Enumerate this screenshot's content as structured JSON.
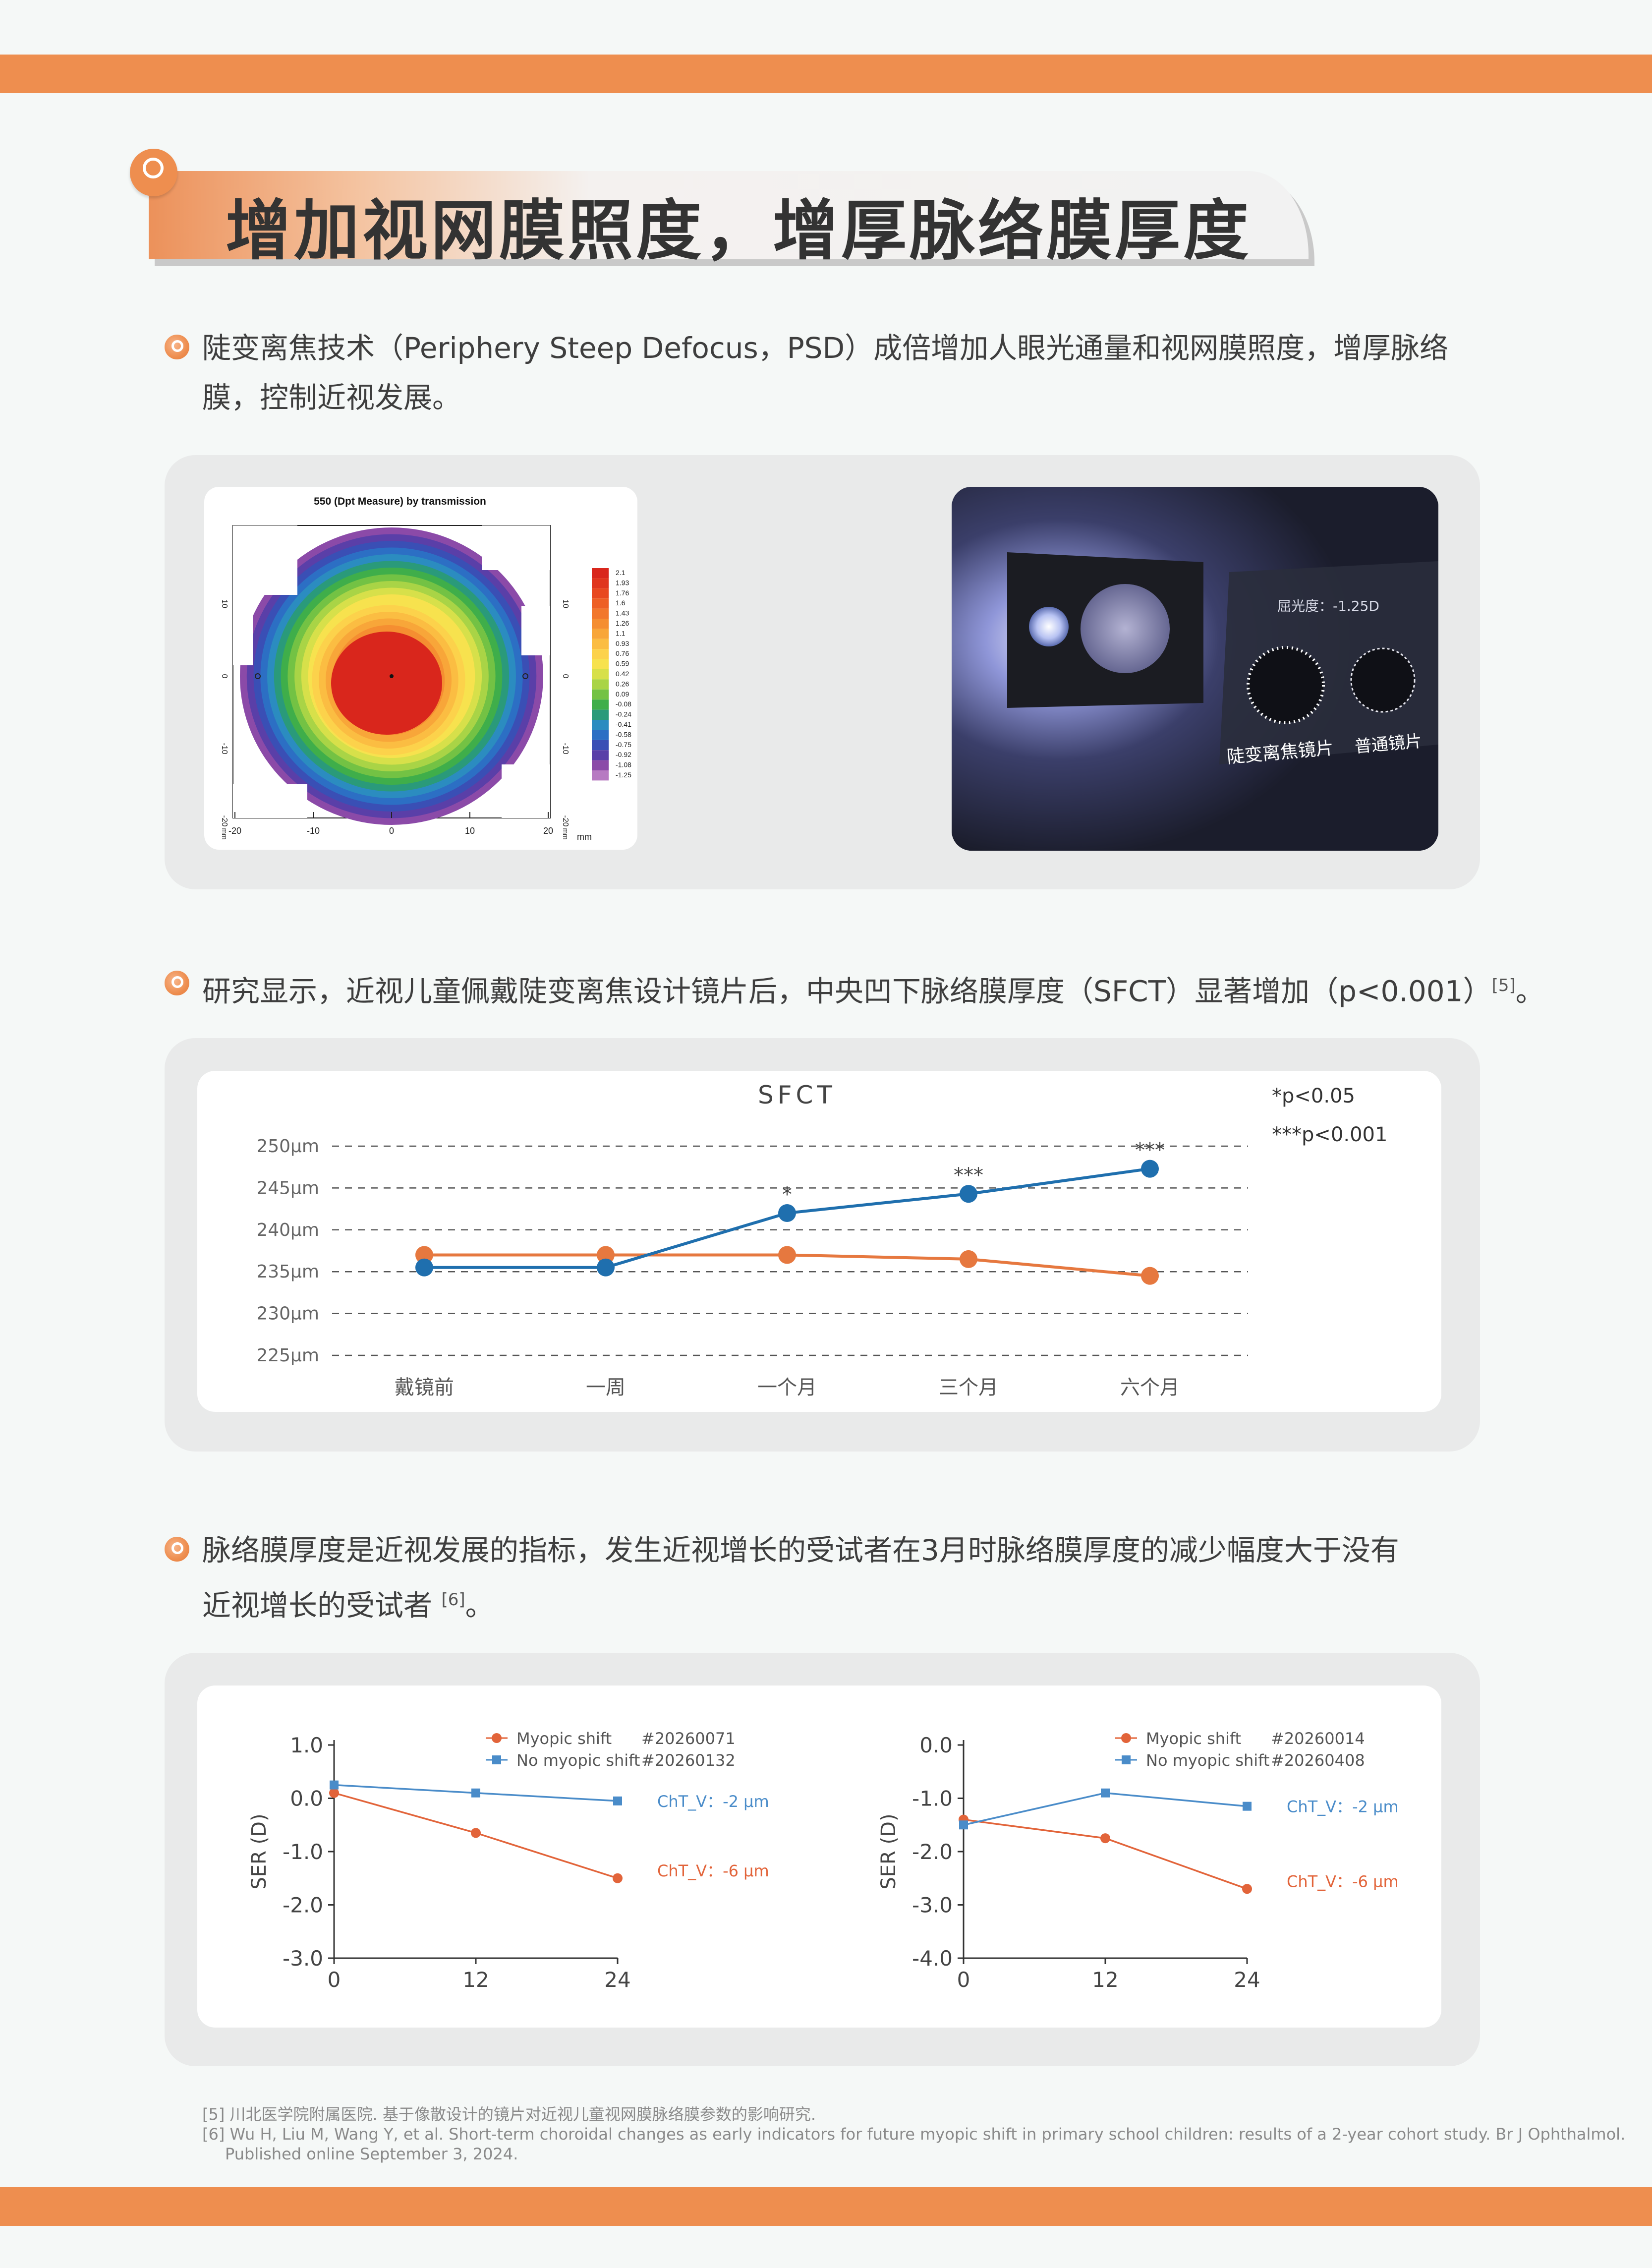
{
  "header": {
    "title": "增加视网膜照度，增厚脉络膜厚度"
  },
  "section1": {
    "text_line1": "陡变离焦技术（Periphery Steep Defocus，PSD）成倍增加人眼光通量和视网膜照度，增厚脉络",
    "text_line2": "膜，控制近视发展。"
  },
  "power_map": {
    "title": "550 (Dpt Measure) by transmission",
    "x_ticks": [
      "-20",
      "-10",
      "0",
      "10",
      "20"
    ],
    "y_ticks": [
      "10",
      "0",
      "-10",
      "-20"
    ],
    "unit_label": "mm",
    "y_unit": "mm",
    "scale_values": [
      "2.1",
      "1.93",
      "1.76",
      "1.6",
      "1.43",
      "1.26",
      "1.1",
      "0.93",
      "0.76",
      "0.59",
      "0.42",
      "0.26",
      "0.09",
      "-0.08",
      "-0.24",
      "-0.41",
      "-0.58",
      "-0.75",
      "-0.92",
      "-1.08",
      "-1.25"
    ],
    "scale_colors": [
      "#d9261c",
      "#e0351d",
      "#e8481f",
      "#ee5f24",
      "#f2772b",
      "#f58e31",
      "#f8a639",
      "#fbbd42",
      "#fcd24b",
      "#f7e24e",
      "#d7e04a",
      "#a9d446",
      "#73c244",
      "#3fae4a",
      "#2a9a7a",
      "#2b8cc0",
      "#2c6fc4",
      "#3a4fb5",
      "#5a3fa8",
      "#8b4aa8",
      "#b77ac2"
    ]
  },
  "photo": {
    "refraction_label": "屈光度：-1.25D",
    "lens1_label": "陡变离焦镜片",
    "lens2_label": "普通镜片"
  },
  "section2": {
    "text": "研究显示，近视儿童佩戴陡变离焦设计镜片后，中央凹下脉络膜厚度（SFCT）显著增加（p<0.001）",
    "ref": "[5]",
    "tail": "。"
  },
  "chart_data": [
    {
      "type": "line",
      "title": "SFCT",
      "categories": [
        "戴镜前",
        "一周",
        "一个月",
        "三个月",
        "六个月"
      ],
      "y_tick_labels": [
        "250μm",
        "245μm",
        "240μm",
        "235μm",
        "230μm",
        "225μm"
      ],
      "ylim": [
        225,
        250
      ],
      "grid": "dashed horizontal",
      "series": [
        {
          "values": [
            237,
            237,
            237,
            236.5,
            234.5
          ],
          "color": "#e6783f"
        },
        {
          "values": [
            235.5,
            235.5,
            242,
            244.3,
            247.3
          ],
          "color": "#1f6fae",
          "annotations": [
            "",
            "",
            "*",
            "***",
            "***"
          ]
        }
      ],
      "notes": [
        "*p<0.05",
        "***p<0.001"
      ]
    },
    {
      "type": "line",
      "ylabel": "SER (D)",
      "x": [
        0,
        12,
        24
      ],
      "ylim": [
        -3.0,
        1.0
      ],
      "y_tick_labels": [
        "1.0",
        "0.0",
        "-1.0",
        "-2.0",
        "-3.0"
      ],
      "x_tick_labels": [
        "0",
        "12",
        "24"
      ],
      "series": [
        {
          "name": "Myopic shift",
          "id": "#20260071",
          "values": [
            0.1,
            -0.65,
            -1.5
          ],
          "color": "#e2643a",
          "marker": "circle",
          "label": "ChT_V：-6 μm"
        },
        {
          "name": "No myopic shift",
          "id": "#20260132",
          "values": [
            0.25,
            0.1,
            -0.05
          ],
          "color": "#4a8cc9",
          "marker": "square",
          "label": "ChT_V：-2 μm"
        }
      ]
    },
    {
      "type": "line",
      "ylabel": "SER (D)",
      "x": [
        0,
        12,
        24
      ],
      "ylim": [
        -4.0,
        0.0
      ],
      "y_tick_labels": [
        "0.0",
        "-1.0",
        "-2.0",
        "-3.0",
        "-4.0"
      ],
      "x_tick_labels": [
        "0",
        "12",
        "24"
      ],
      "series": [
        {
          "name": "Myopic shift",
          "id": "#20260014",
          "values": [
            -1.4,
            -1.75,
            -2.7
          ],
          "color": "#e2643a",
          "marker": "circle",
          "label": "ChT_V：-6 μm"
        },
        {
          "name": "No myopic shift",
          "id": "#20260408",
          "values": [
            -1.5,
            -0.9,
            -1.15
          ],
          "color": "#4a8cc9",
          "marker": "square",
          "label": "ChT_V：-2 μm"
        }
      ]
    }
  ],
  "section3": {
    "text_line1": "脉络膜厚度是近视发展的指标，发生近视增长的受试者在3月时脉络膜厚度的减少幅度大于没有",
    "text_line2": "近视增长的受试者",
    "ref": "[6]",
    "tail": "。"
  },
  "references": {
    "ref5": "[5] 川北医学院附属医院. 基于像散设计的镜片对近视儿童视网膜脉络膜参数的影响研究.",
    "ref6": "[6] Wu H, Liu M, Wang Y, et al. Short-term choroidal changes as early indicators for future myopic shift in primary school children: results of a 2-year cohort study. Br J Ophthalmol.",
    "ref6_cont": "Published online September 3, 2024."
  }
}
